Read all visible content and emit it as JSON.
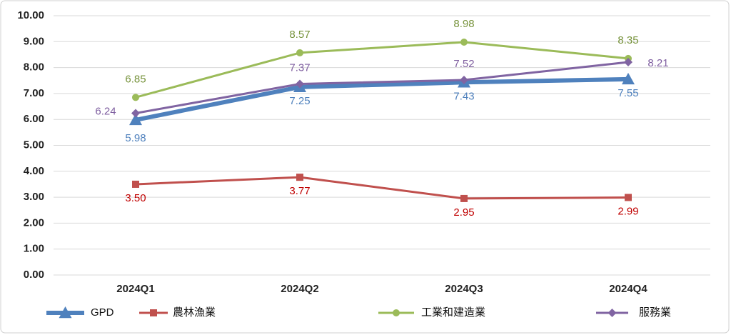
{
  "chart_data": {
    "type": "line",
    "categories": [
      "2024Q1",
      "2024Q2",
      "2024Q3",
      "2024Q4"
    ],
    "series": [
      {
        "name": "GPD",
        "color": "#4f81bd",
        "values": [
          5.98,
          7.25,
          7.43,
          7.55
        ],
        "value_labels": [
          "5.98",
          "7.25",
          "7.43",
          "7.55"
        ]
      },
      {
        "name": "農林漁業",
        "color": "#c0504d",
        "values": [
          3.5,
          3.77,
          2.95,
          2.99
        ],
        "value_labels": [
          "3.50",
          "3.77",
          "2.95",
          "2.99"
        ]
      },
      {
        "name": "工業和建造業",
        "color": "#9bbb59",
        "values": [
          6.85,
          8.57,
          8.98,
          8.35
        ],
        "value_labels": [
          "6.85",
          "8.57",
          "8.98",
          "8.35"
        ]
      },
      {
        "name": "服務業",
        "color": "#8064a2",
        "values": [
          6.24,
          7.37,
          7.52,
          8.21
        ],
        "value_labels": [
          "6.24",
          "7.37",
          "7.52",
          "8.21"
        ]
      }
    ],
    "ylim": [
      0,
      10
    ],
    "yticks": [
      {
        "value": 0,
        "label": "0.00"
      },
      {
        "value": 1,
        "label": "1.00"
      },
      {
        "value": 2,
        "label": "2.00"
      },
      {
        "value": 3,
        "label": "3.00"
      },
      {
        "value": 4,
        "label": "4.00"
      },
      {
        "value": 5,
        "label": "5.00"
      },
      {
        "value": 6,
        "label": "6.00"
      },
      {
        "value": 7,
        "label": "7.00"
      },
      {
        "value": 8,
        "label": "8.00"
      },
      {
        "value": 9,
        "label": "9.00"
      },
      {
        "value": 10,
        "label": "10.00"
      }
    ],
    "grid": true,
    "legend": "bottom"
  }
}
